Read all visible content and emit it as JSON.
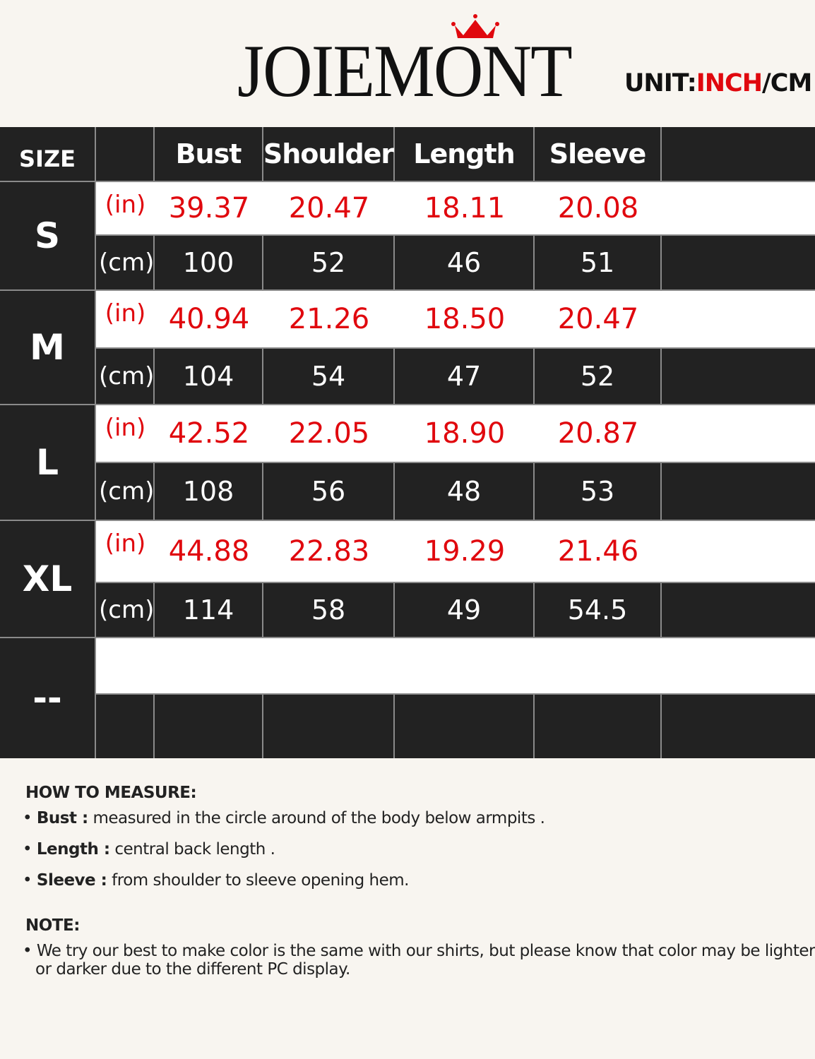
{
  "brand": {
    "logo_text": "JOIEMONT",
    "crown_color": "#e0080e"
  },
  "unit_label": {
    "prefix": "UNIT:",
    "inch": "INCH",
    "separator": "/",
    "cm": "CM"
  },
  "colors": {
    "red": "#e0080e",
    "dark": "#222222",
    "background": "#f8f5f0"
  },
  "table": {
    "size_header": "SIZE",
    "columns": [
      "Bust",
      "Shoulder",
      "Length",
      "Sleeve",
      ""
    ],
    "in_label": "(in)",
    "cm_label": "(cm)",
    "rows": [
      {
        "size": "S",
        "in": [
          "39.37",
          "20.47",
          "18.11",
          "20.08"
        ],
        "cm": [
          "100",
          "52",
          "46",
          "51"
        ]
      },
      {
        "size": "M",
        "in": [
          "40.94",
          "21.26",
          "18.50",
          "20.47"
        ],
        "cm": [
          "104",
          "54",
          "47",
          "52"
        ]
      },
      {
        "size": "L",
        "in": [
          "42.52",
          "22.05",
          "18.90",
          "20.87"
        ],
        "cm": [
          "108",
          "56",
          "48",
          "53"
        ]
      },
      {
        "size": "XL",
        "in": [
          "44.88",
          "22.83",
          "19.29",
          "21.46"
        ],
        "cm": [
          "114",
          "58",
          "49",
          "54.5"
        ]
      },
      {
        "size": "--",
        "in": [],
        "cm": []
      }
    ]
  },
  "how_to_measure": {
    "title": "HOW TO MEASURE:",
    "items": [
      {
        "term": "Bust :",
        "text": " measured in the circle around of the body below armpits ."
      },
      {
        "term": "Length :",
        "text": " central back length ."
      },
      {
        "term": "Sleeve :",
        "text": " from shoulder to sleeve opening hem."
      }
    ]
  },
  "note": {
    "title": "NOTE:",
    "text_line1": "We try our best to make color is the same with our shirts, but  please know that color may be lighter",
    "text_line2": "or darker due to the  different PC display."
  }
}
